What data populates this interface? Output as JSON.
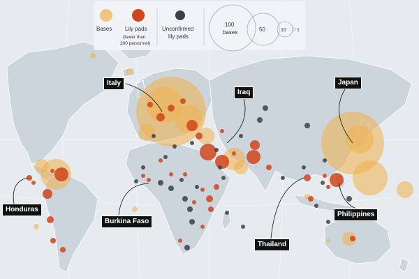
{
  "legend": {
    "bases_label": "Bases",
    "lily_pads_label": "Lily pads",
    "lily_pads_note_line1": "(fewer than",
    "lily_pads_note_line2": "200 personnel)",
    "unconfirmed_line1": "Unconfirmed",
    "unconfirmed_line2": "lily pads",
    "size_100_line1": "100",
    "size_100_line2": "bases",
    "size_50": "50",
    "size_10": "10",
    "size_1": "1"
  },
  "colors": {
    "bases": "#f0b14a",
    "lily_pads": "#d0451b",
    "unconfirmed": "#3c4148",
    "land": "#cdd5dc",
    "water": "#e6ebef"
  },
  "country_labels": {
    "italy": "Italy",
    "iraq": "Iraq",
    "japan": "Japan",
    "honduras": "Honduras",
    "burkina_faso": "Burkina Faso",
    "thailand": "Thailand",
    "philippines": "Philippines"
  },
  "markers": {
    "bases": [
      {
        "place": "Italy/Germany region",
        "count": 100
      },
      {
        "place": "Japan",
        "count": 80
      },
      {
        "place": "South Korea",
        "count": 30
      },
      {
        "place": "Guam",
        "count": 20
      },
      {
        "place": "Honduras region",
        "count": 8
      },
      {
        "place": "Spain",
        "count": 4
      },
      {
        "place": "Turkey",
        "count": 6
      },
      {
        "place": "Kuwait",
        "count": 8
      },
      {
        "place": "Bahrain/Qatar",
        "count": 4
      },
      {
        "place": "Australia",
        "count": 3
      },
      {
        "place": "Greenland",
        "count": 1
      },
      {
        "place": "Iceland",
        "count": 1
      },
      {
        "place": "Marshall Islands",
        "count": 3
      }
    ],
    "lily_pads_count": 46,
    "unconfirmed_count": 38
  }
}
